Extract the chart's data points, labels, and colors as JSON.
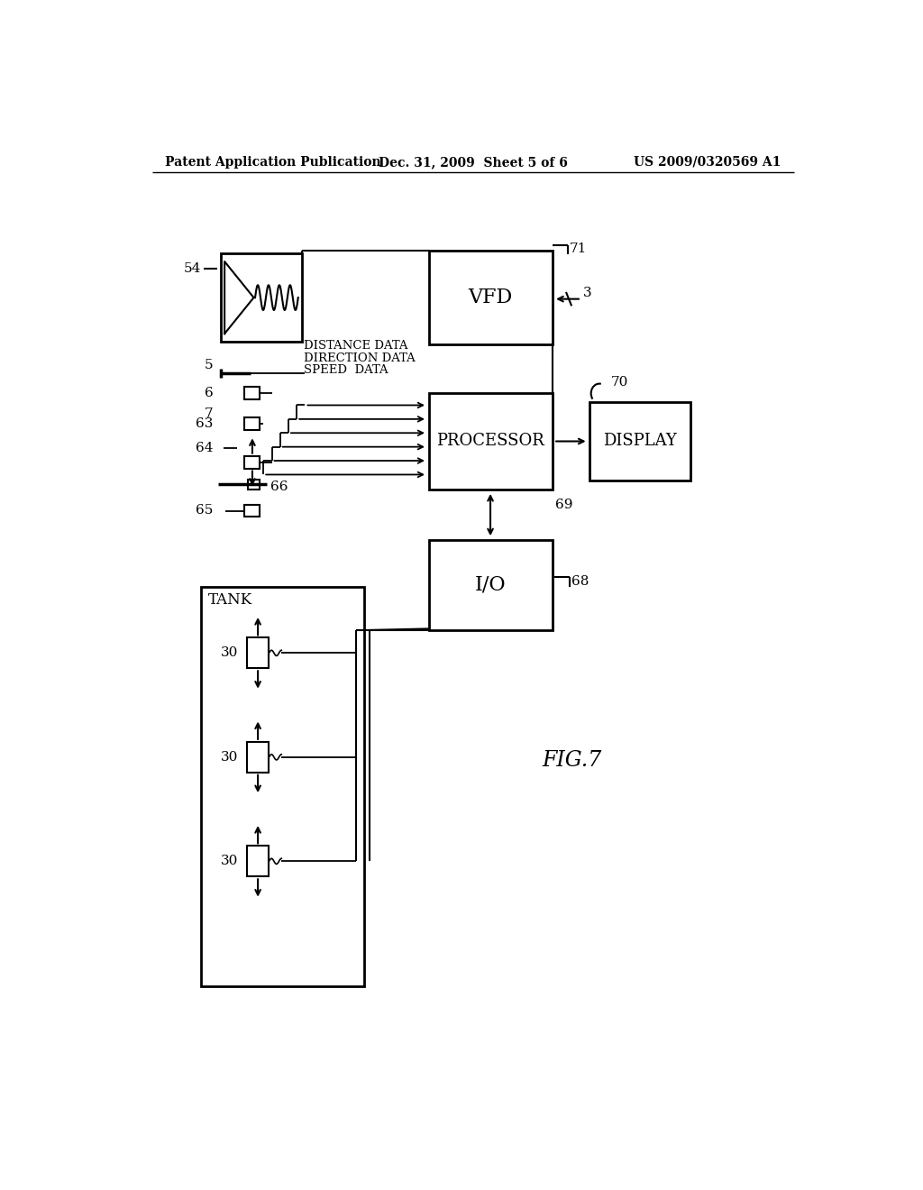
{
  "bg_color": "#ffffff",
  "line_color": "#000000",
  "header_left": "Patent Application Publication",
  "header_mid": "Dec. 31, 2009  Sheet 5 of 6",
  "header_right": "US 2009/0320569 A1",
  "fig_label": "FIG.7"
}
